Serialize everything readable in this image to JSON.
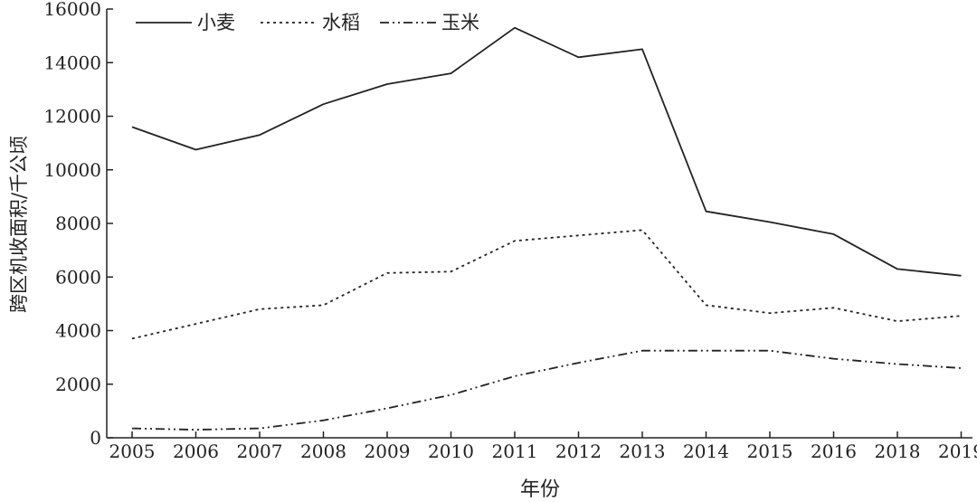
{
  "chart_data": {
    "type": "line",
    "title": "",
    "xlabel": "年份",
    "ylabel": "跨区机收面积/千公顷",
    "categories": [
      "2005",
      "2006",
      "2007",
      "2008",
      "2009",
      "2010",
      "2011",
      "2012",
      "2013",
      "2014",
      "2015",
      "2016",
      "2018",
      "2019"
    ],
    "ylim": [
      0,
      16000
    ],
    "yticks": [
      0,
      2000,
      4000,
      6000,
      8000,
      10000,
      12000,
      14000,
      16000
    ],
    "grid": false,
    "legend": "top-left",
    "series": [
      {
        "name": "小麦",
        "style": "solid",
        "values": [
          11600,
          10750,
          11300,
          12450,
          13200,
          13600,
          15300,
          14200,
          14500,
          8450,
          8050,
          7600,
          6300,
          6050
        ]
      },
      {
        "name": "水稻",
        "style": "dotted",
        "values": [
          3700,
          4250,
          4800,
          4950,
          6150,
          6200,
          7350,
          7550,
          7750,
          4950,
          4650,
          4850,
          4350,
          4550
        ]
      },
      {
        "name": "玉米",
        "style": "dash-dot",
        "values": [
          350,
          300,
          350,
          650,
          1100,
          1600,
          2300,
          2800,
          3250,
          3250,
          3250,
          2950,
          2750,
          2600
        ]
      }
    ],
    "color": "#222222"
  }
}
